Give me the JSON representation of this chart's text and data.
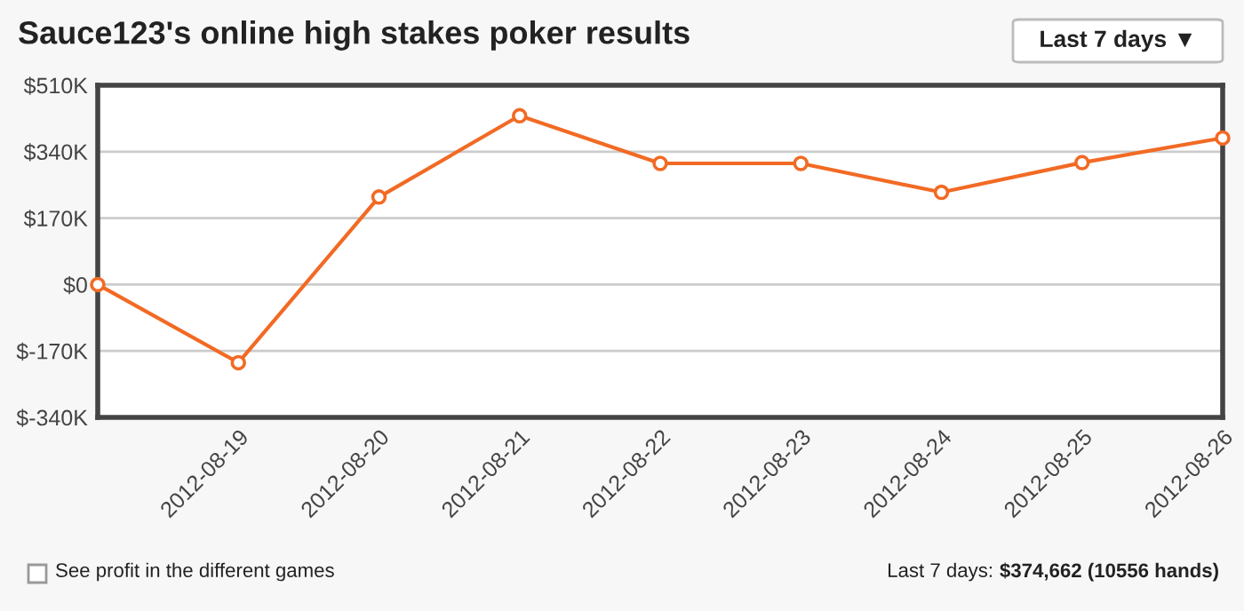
{
  "chart_data": {
    "type": "line",
    "title": "Sauce123's online high stakes poker results",
    "x": [
      "2012-08-18",
      "2012-08-19",
      "2012-08-20",
      "2012-08-21",
      "2012-08-22",
      "2012-08-23",
      "2012-08-24",
      "2012-08-25",
      "2012-08-26"
    ],
    "series": [
      {
        "color": "#f26a24",
        "values": [
          0,
          -200000,
          224000,
          432000,
          310000,
          310000,
          236000,
          312000,
          375000
        ]
      }
    ],
    "xlim": [
      "2012-08-18",
      "2012-08-26"
    ],
    "xticks": [
      "2012-08-19",
      "2012-08-20",
      "2012-08-21",
      "2012-08-22",
      "2012-08-23",
      "2012-08-24",
      "2012-08-25",
      "2012-08-26"
    ],
    "ylim": [
      -340000,
      510000
    ],
    "yticks": [
      {
        "value": -340000,
        "label": "$-340K"
      },
      {
        "value": -170000,
        "label": "$-170K"
      },
      {
        "value": 0,
        "label": "$0"
      },
      {
        "value": 170000,
        "label": "$170K"
      },
      {
        "value": 340000,
        "label": "$340K"
      },
      {
        "value": 510000,
        "label": "$510K"
      }
    ],
    "grid": "y",
    "marker": "circle",
    "line_style": "solid",
    "annotations": [
      "Last 7 days ▼",
      "See profit in the different games",
      "Last 7 days:",
      "$374,662 (10556 hands)"
    ]
  }
}
